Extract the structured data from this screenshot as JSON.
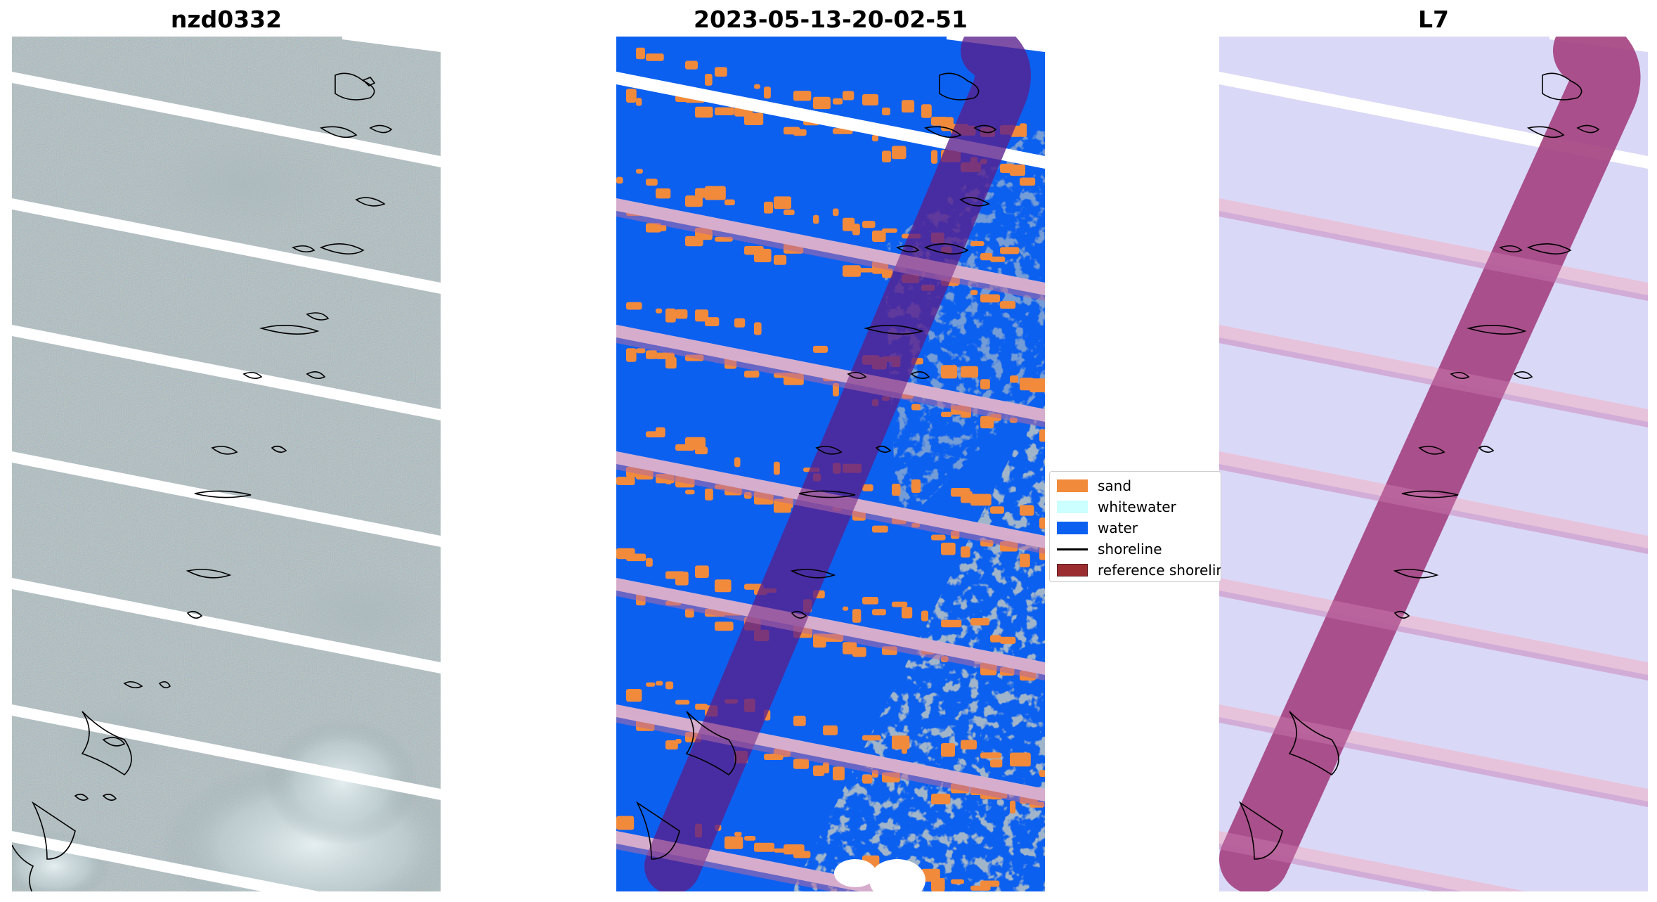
{
  "panels": [
    {
      "title": "nzd0332"
    },
    {
      "title": "2023-05-13-20-02-51"
    },
    {
      "title": "L7"
    }
  ],
  "legend": {
    "items": [
      {
        "label": "sand",
        "color": "#f28a3c",
        "kind": "patch"
      },
      {
        "label": "whitewater",
        "color": "#ccffff",
        "kind": "patch"
      },
      {
        "label": "water",
        "color": "#0b60f0",
        "kind": "patch"
      },
      {
        "label": "shoreline",
        "color": "#000000",
        "kind": "line"
      },
      {
        "label": "reference shoreline buffer",
        "color": "#9b2d30",
        "kind": "patch"
      }
    ]
  },
  "colors": {
    "rgb_base": "#5b6f73",
    "rgb_light": "#b7c7c9",
    "classified_water": "#0b60f0",
    "classified_sand": "#f28a3c",
    "classified_other": "#808c8c",
    "buffer_overlay": "#5a1f8c",
    "buffer_mndwi": "#a3407f",
    "mndwi_background": "#d9d8f7",
    "stripe_gap": "#ffffff"
  }
}
